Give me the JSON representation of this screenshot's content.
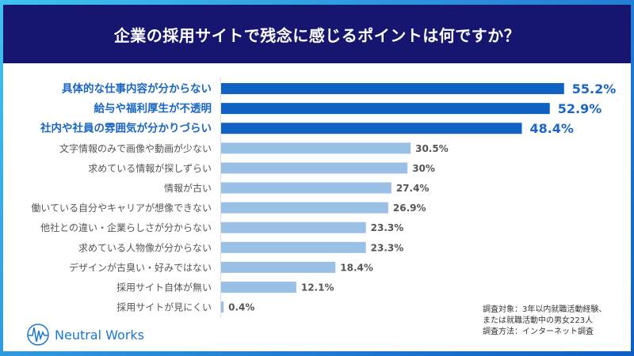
{
  "title": "企業の採用サイトで残念に感じるポイントは何ですか？",
  "colors": {
    "highlight": "#0f62c2",
    "normal": "#9bc0e6",
    "header": "#161670",
    "highlight_text": "#1a66c4"
  },
  "chart_data": {
    "type": "bar",
    "orientation": "horizontal",
    "title": "企業の採用サイトで残念に感じるポイントは何ですか？",
    "categories": [
      "具体的な仕事内容が分からない",
      "給与や福利厚生が不透明",
      "社内や社員の雰囲気が分かりづらい",
      "文字情報のみで画像や動画が少ない",
      "求めている情報が探しずらい",
      "情報が古い",
      "働いている自分やキャリアが想像できない",
      "他社との違い・企業らしさが分からない",
      "求めている人物像が分からない",
      "デザインが古臭い・好みではない",
      "採用サイト自体が無い",
      "採用サイトが見にくい"
    ],
    "values": [
      55.2,
      52.9,
      48.4,
      30.5,
      30,
      27.4,
      26.9,
      23.3,
      23.3,
      18.4,
      12.1,
      0.4
    ],
    "value_labels": [
      "55.2%",
      "52.9%",
      "48.4%",
      "30.5%",
      "30%",
      "27.4%",
      "26.9%",
      "23.3%",
      "23.3%",
      "18.4%",
      "12.1%",
      "0.4%"
    ],
    "highlighted_top": 3,
    "unit": "%",
    "grid": false
  },
  "note": [
    "調査対象：3年以内就職活動経験、",
    "または就職活動中の男女223人",
    "調査方法：インターネット調査"
  ],
  "logo": {
    "text": "Neutral Works"
  }
}
